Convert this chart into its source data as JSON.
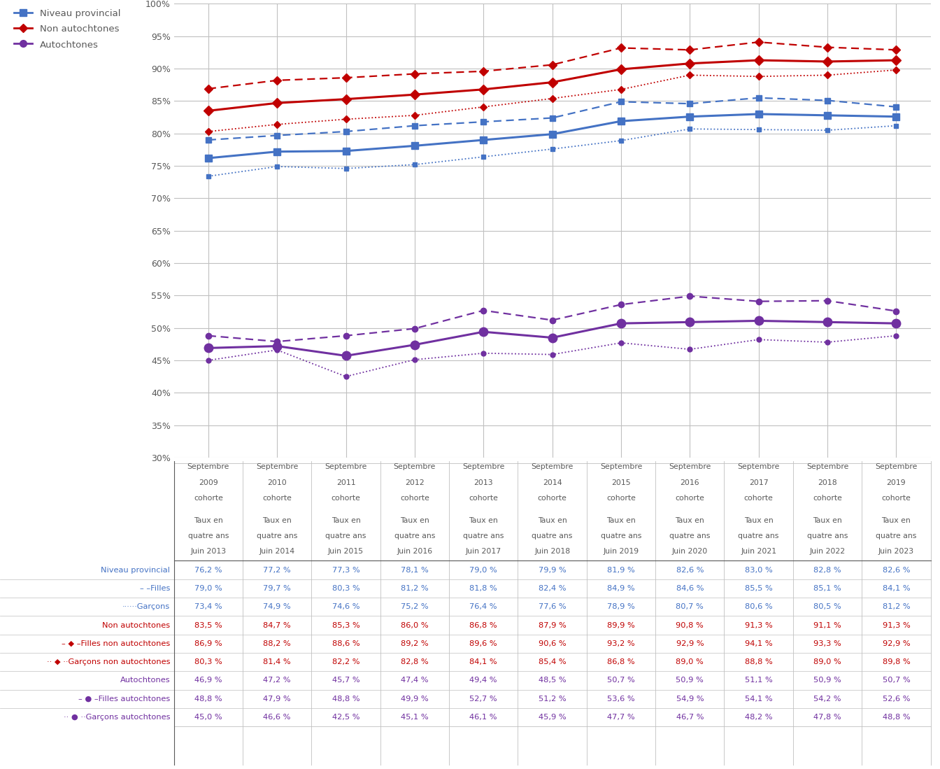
{
  "niveau_provincial": [
    76.2,
    77.2,
    77.3,
    78.1,
    79.0,
    79.9,
    81.9,
    82.6,
    83.0,
    82.8,
    82.6
  ],
  "filles": [
    79.0,
    79.7,
    80.3,
    81.2,
    81.8,
    82.4,
    84.9,
    84.6,
    85.5,
    85.1,
    84.1
  ],
  "garcons": [
    73.4,
    74.9,
    74.6,
    75.2,
    76.4,
    77.6,
    78.9,
    80.7,
    80.6,
    80.5,
    81.2
  ],
  "non_autochtones": [
    83.5,
    84.7,
    85.3,
    86.0,
    86.8,
    87.9,
    89.9,
    90.8,
    91.3,
    91.1,
    91.3
  ],
  "filles_non_autochtones": [
    86.9,
    88.2,
    88.6,
    89.2,
    89.6,
    90.6,
    93.2,
    92.9,
    94.1,
    93.3,
    92.9
  ],
  "garcons_non_autochtones": [
    80.3,
    81.4,
    82.2,
    82.8,
    84.1,
    85.4,
    86.8,
    89.0,
    88.8,
    89.0,
    89.8
  ],
  "autochtones": [
    46.9,
    47.2,
    45.7,
    47.4,
    49.4,
    48.5,
    50.7,
    50.9,
    51.1,
    50.9,
    50.7
  ],
  "filles_autochtones": [
    48.8,
    47.9,
    48.8,
    49.9,
    52.7,
    51.2,
    53.6,
    54.9,
    54.1,
    54.2,
    52.6
  ],
  "garcons_autochtones": [
    45.0,
    46.6,
    42.5,
    45.1,
    46.1,
    45.9,
    47.7,
    46.7,
    48.2,
    47.8,
    48.8
  ],
  "color_blue": "#4472C4",
  "color_red": "#C00000",
  "color_purple": "#7030A0",
  "color_grid": "#C0C0C0",
  "ylim_min": 30,
  "ylim_max": 100,
  "ytick_step": 5,
  "col_years": [
    "2009",
    "2010",
    "2011",
    "2012",
    "2013",
    "2014",
    "2015",
    "2016",
    "2017",
    "2018",
    "2019"
  ],
  "col_juin": [
    "Juin 2013",
    "Juin 2014",
    "Juin 2015",
    "Juin 2016",
    "Juin 2017",
    "Juin 2018",
    "Juin 2019",
    "Juin 2020",
    "Juin 2021",
    "Juin 2022",
    "Juin 2023"
  ],
  "legend_entries": [
    "Niveau provincial",
    "Non autochtones",
    "Autochtones"
  ],
  "row_labels_text": [
    "Niveau provincial",
    "– –Filles",
    "······Garçons",
    "Non autochtones",
    "– ◆ –Filles non autochtones",
    "·· ◆ ··Garçons non autochtones",
    "Autochtones",
    "– ● –Filles autochtones",
    "·· ● ··Garçons autochtones"
  ],
  "row_colors": [
    "#4472C4",
    "#4472C4",
    "#4472C4",
    "#C00000",
    "#C00000",
    "#C00000",
    "#7030A0",
    "#7030A0",
    "#7030A0"
  ]
}
